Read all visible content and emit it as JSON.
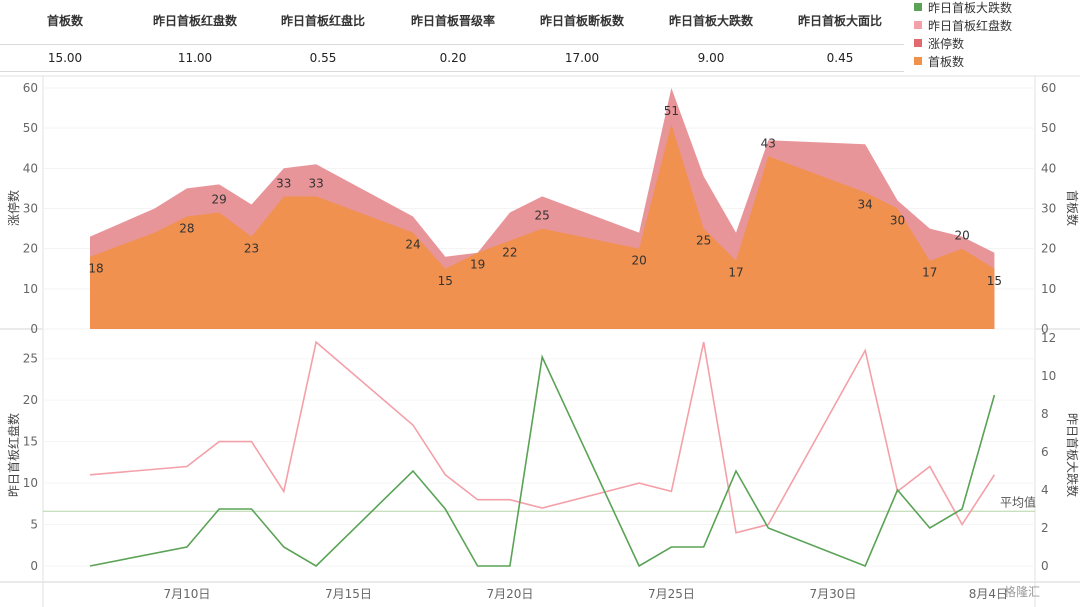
{
  "kpi": {
    "headers": [
      "首板数",
      "昨日首板红盘数",
      "昨日首板红盘比",
      "昨日首板晋级率",
      "昨日首板断板数",
      "昨日首板大跌数",
      "昨日首板大面比"
    ],
    "values": [
      "15.00",
      "11.00",
      "0.55",
      "0.20",
      "17.00",
      "9.00",
      "0.45"
    ]
  },
  "legend": [
    {
      "label": "昨日首板大跌数",
      "color": "#5aa356"
    },
    {
      "label": "昨日首板红盘数",
      "color": "#f4a0a8"
    },
    {
      "label": "涨停数",
      "color": "#e06a6f"
    },
    {
      "label": "首板数",
      "color": "#f0904a"
    }
  ],
  "colors": {
    "limit_up": "#e8959a",
    "first_board": "#f0914f",
    "red_count": "#f4a0a8",
    "big_drop": "#5aa356",
    "avg_line": "#b5d6a7"
  },
  "chart_data": [
    {
      "type": "area",
      "x": [
        "2023-07-07",
        "2023-07-09",
        "2023-07-10",
        "2023-07-11",
        "2023-07-12",
        "2023-07-13",
        "2023-07-14",
        "2023-07-17",
        "2023-07-18",
        "2023-07-19",
        "2023-07-20",
        "2023-07-21",
        "2023-07-24",
        "2023-07-25",
        "2023-07-26",
        "2023-07-27",
        "2023-07-28",
        "2023-07-31",
        "2023-08-01",
        "2023-08-02",
        "2023-08-03",
        "2023-08-04"
      ],
      "series": [
        {
          "name": "涨停数",
          "values": [
            23,
            30,
            35,
            36,
            31,
            40,
            41,
            28,
            18,
            19,
            29,
            33,
            24,
            60,
            38,
            24,
            47,
            46,
            32,
            25,
            23,
            19
          ]
        },
        {
          "name": "首板数",
          "values": [
            18,
            24,
            28,
            29,
            23,
            33,
            33,
            24,
            15,
            19,
            22,
            25,
            20,
            51,
            25,
            17,
            43,
            34,
            30,
            17,
            20,
            15
          ],
          "labels": [
            "18",
            "",
            "28",
            "29",
            "23",
            "33",
            "33",
            "24",
            "15",
            "19",
            "22",
            "25",
            "20",
            "51",
            "25",
            "17",
            "43",
            "34",
            "30",
            "17",
            "20",
            "15"
          ]
        }
      ],
      "ylabel": "涨停数",
      "y2label": "首板数",
      "ylim": [
        0,
        60
      ],
      "yticks": [
        "0",
        "10",
        "20",
        "30",
        "40",
        "50",
        "60"
      ]
    },
    {
      "type": "line",
      "x": [
        "2023-07-07",
        "2023-07-10",
        "2023-07-11",
        "2023-07-12",
        "2023-07-13",
        "2023-07-14",
        "2023-07-17",
        "2023-07-18",
        "2023-07-19",
        "2023-07-20",
        "2023-07-21",
        "2023-07-24",
        "2023-07-25",
        "2023-07-26",
        "2023-07-27",
        "2023-07-28",
        "2023-07-31",
        "2023-08-01",
        "2023-08-02",
        "2023-08-03",
        "2023-08-04"
      ],
      "series": [
        {
          "name": "昨日首板红盘数",
          "axis": "left",
          "values": [
            11,
            12,
            15,
            15,
            9,
            27,
            17,
            11,
            8,
            8,
            7,
            10,
            9,
            27,
            4,
            5,
            26,
            9,
            12,
            5,
            11
          ]
        },
        {
          "name": "昨日首板大跌数",
          "axis": "right",
          "values": [
            0,
            1,
            3,
            3,
            1,
            0,
            5,
            3,
            0,
            0,
            11,
            0,
            1,
            1,
            5,
            2,
            0,
            4,
            2,
            3,
            9
          ]
        }
      ],
      "ylabel": "昨日首板红盘数",
      "y2label": "昨日首板大跌数",
      "ylim": [
        0,
        27.5
      ],
      "yticks": [
        "0",
        "5",
        "10",
        "15",
        "20",
        "25"
      ],
      "y2lim": [
        0,
        12
      ],
      "y2ticks": [
        "0",
        "2",
        "4",
        "6",
        "8",
        "10",
        "12"
      ],
      "reference_line": {
        "label": "平均值",
        "value": 6.6
      },
      "xticks": [
        "7月10日",
        "7月15日",
        "7月20日",
        "7月25日",
        "7月30日",
        "8月4日"
      ]
    }
  ],
  "watermark": "格隆汇"
}
